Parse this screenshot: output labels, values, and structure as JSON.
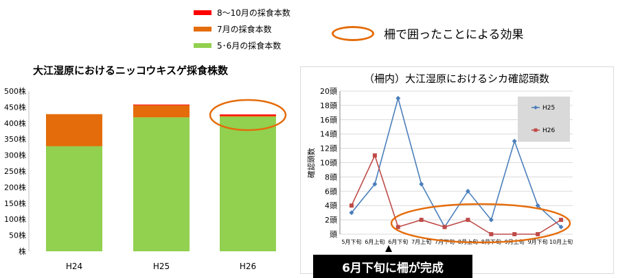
{
  "legend": {
    "items": [
      {
        "label": "8～10月の採食本数",
        "color": "#ff0000"
      },
      {
        "label": "7月の採食本数",
        "color": "#e46c0a"
      },
      {
        "label": "5･6月の採食本数",
        "color": "#92d050"
      }
    ]
  },
  "effect_legend_label": "柵で囲ったことによる効果",
  "completion_label": "6月下旬に柵が完成",
  "chart_data": [
    {
      "type": "bar",
      "title": "大江湿原におけるニッコウキスゲ採食株数",
      "categories": [
        "H24",
        "H25",
        "H26"
      ],
      "series": [
        {
          "name": "5･6月の採食本数",
          "color": "#92d050",
          "values": [
            328,
            418,
            420
          ]
        },
        {
          "name": "7月の採食本数",
          "color": "#e46c0a",
          "values": [
            100,
            38,
            3
          ]
        },
        {
          "name": "8～10月の採食本数",
          "color": "#ff0000",
          "values": [
            0,
            2,
            4
          ]
        }
      ],
      "ylim": [
        0,
        500
      ],
      "yticks": [
        "株",
        "50株",
        "100株",
        "150株",
        "200株",
        "250株",
        "300株",
        "350株",
        "400株",
        "450株",
        "500株"
      ],
      "stacked": true,
      "grid": false
    },
    {
      "type": "line",
      "title": "（柵内）大江湿原におけるシカ確認頭数",
      "ylabel": "確認頭数",
      "categories": [
        "5月下旬",
        "6月上旬",
        "6月下旬",
        "7月上旬",
        "7月下旬",
        "8月上旬",
        "8月下旬",
        "9月上旬",
        "9月下旬",
        "10月上旬"
      ],
      "series": [
        {
          "name": "H25",
          "color": "#4a7ebb",
          "marker": "diamond",
          "values": [
            3,
            7,
            19,
            7,
            1,
            6,
            2,
            13,
            4,
            1
          ]
        },
        {
          "name": "H26",
          "color": "#be4b48",
          "marker": "square",
          "values": [
            4,
            11,
            1,
            2,
            1,
            2,
            0,
            0,
            0,
            2
          ]
        }
      ],
      "ylim": [
        0,
        20
      ],
      "yticks": [
        "頭",
        "2頭",
        "4頭",
        "6頭",
        "8頭",
        "10頭",
        "12頭",
        "14頭",
        "16頭",
        "18頭",
        "20頭"
      ],
      "grid": true,
      "legend_position": "top-right"
    }
  ]
}
